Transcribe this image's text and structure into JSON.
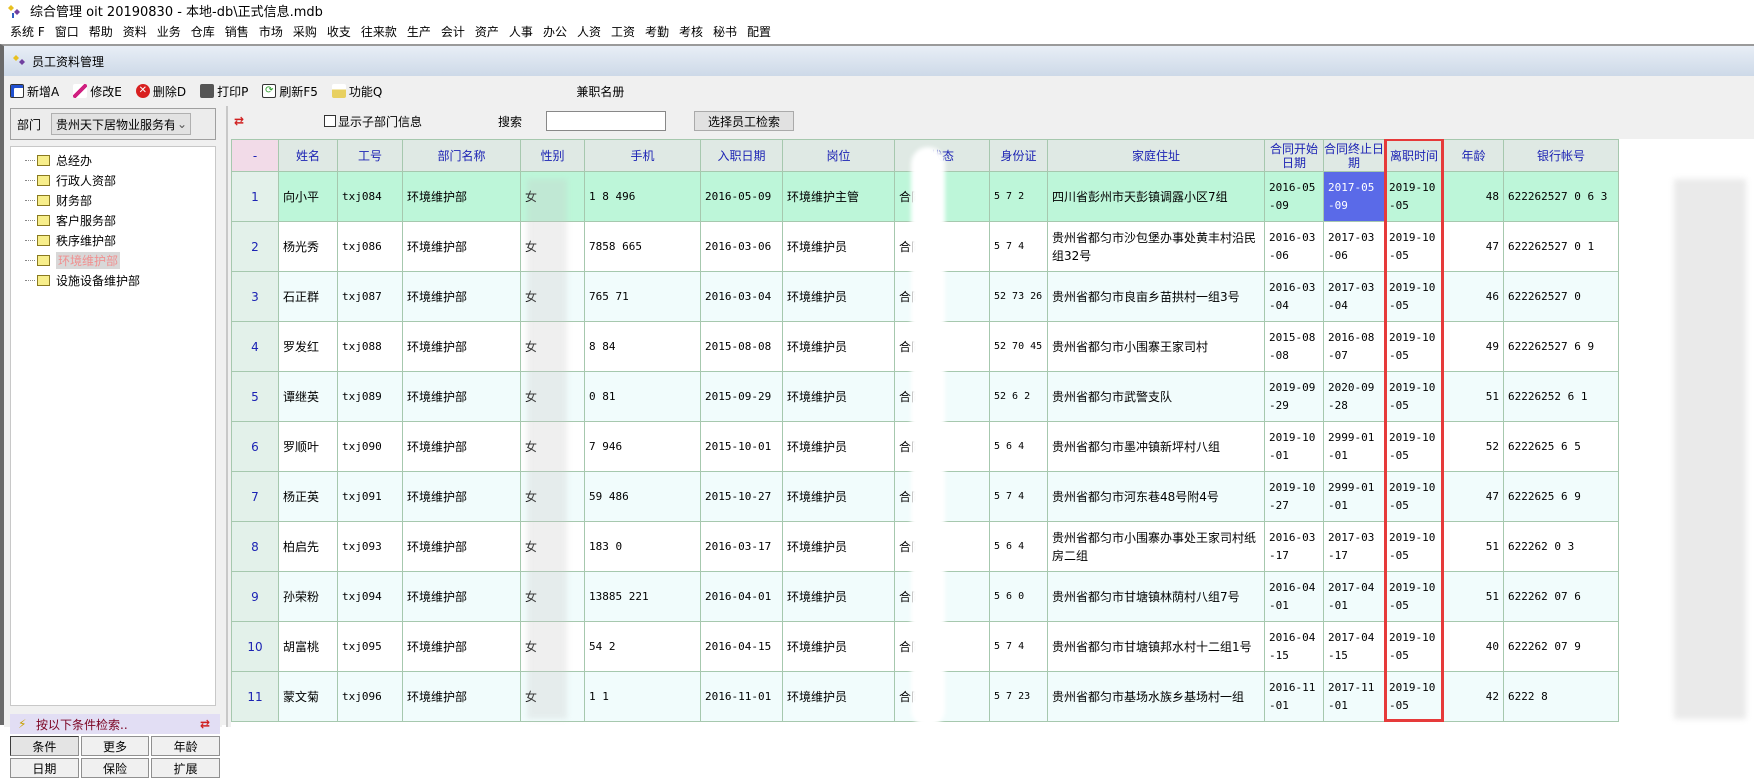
{
  "app": {
    "title": "综合管理 oit 20190830 - 本地-db\\正式信息.mdb"
  },
  "menu": [
    "系统 F",
    "窗口",
    "帮助",
    "资料",
    "业务",
    "仓库",
    "销售",
    "市场",
    "采购",
    "收支",
    "往来款",
    "生产",
    "会计",
    "资产",
    "人事",
    "办公",
    "人资",
    "工资",
    "考勤",
    "考核",
    "秘书",
    "配置"
  ],
  "window": {
    "title": "员工资料管理"
  },
  "toolbar": {
    "add": "新增A",
    "edit": "修改E",
    "delete": "删除D",
    "print": "打印P",
    "refresh": "刷新F5",
    "function": "功能Q",
    "parttime": "兼职名册"
  },
  "left": {
    "dept_label": "部门",
    "dept_value": "贵州天下居物业服务有",
    "tree": [
      "总经办",
      "行政人资部",
      "财务部",
      "客户服务部",
      "秩序维护部",
      "环境维护部",
      "设施设备维护部"
    ],
    "selected_index": 5,
    "cond_title": "按以下条件检索..",
    "buttons_row1": [
      "条件",
      "更多",
      "年龄"
    ],
    "buttons_row2": [
      "日期",
      "保险",
      "扩展"
    ]
  },
  "search": {
    "show_sub": "显示子部门信息",
    "label": "搜索",
    "value": "",
    "button": "选择员工检索"
  },
  "colors": {
    "header_text": "#1c23b4",
    "selected_row": "#bdf6d9",
    "highlight_cell": "#5a6ae8",
    "red_box": "#e63a3a"
  },
  "table": {
    "columns": [
      "-",
      "姓名",
      "工号",
      "部门名称",
      "性别",
      "手机",
      "入职日期",
      "岗位",
      "状态",
      "身份证",
      "家庭住址",
      "合同开始日期",
      "合同终止日期",
      "离职时间",
      "年龄",
      "银行帐号"
    ],
    "rows": [
      [
        "1",
        "向小平",
        "txj084",
        "环境维护部",
        "女",
        "1  8   496",
        "2016-05-09",
        "环境维护主管",
        "合同期",
        "5 7 2",
        "四川省彭州市天彭镇调露小区7组",
        "2016-05-09",
        "2017-05-09",
        "2019-10-05",
        "48",
        "622262527  0  6 3"
      ],
      [
        "2",
        "杨光秀",
        "txj086",
        "环境维护部",
        "女",
        "7858  665",
        "2016-03-06",
        "环境维护员",
        "合同期",
        "5 7 4",
        "贵州省都匀市沙包堡办事处黄丰村沿民组32号",
        "2016-03-06",
        "2017-03-06",
        "2019-10-05",
        "47",
        "622262527  0 1"
      ],
      [
        "3",
        "石正群",
        "txj087",
        "环境维护部",
        "女",
        "765   71",
        "2016-03-04",
        "环境维护员",
        "合同期",
        "52 73 26",
        "贵州省都匀市良亩乡苗拱村一组3号",
        "2016-03-04",
        "2017-03-04",
        "2019-10-05",
        "46",
        "622262527  0"
      ],
      [
        "4",
        "罗发红",
        "txj088",
        "环境维护部",
        "女",
        "8  84",
        "2015-08-08",
        "环境维护员",
        "合同期",
        "52 70 45",
        "贵州省都匀市小围寨王家司村",
        "2015-08-08",
        "2016-08-07",
        "2019-10-05",
        "49",
        "622262527  6 9"
      ],
      [
        "5",
        "谭继英",
        "txj089",
        "环境维护部",
        "女",
        "0  81",
        "2015-09-29",
        "环境维护员",
        "合同期",
        "52 6 2",
        "贵州省都匀市武警支队",
        "2019-09-29",
        "2020-09-28",
        "2019-10-05",
        "51",
        "62226252  6 1"
      ],
      [
        "6",
        "罗顺叶",
        "txj090",
        "环境维护部",
        "女",
        "7  946",
        "2015-10-01",
        "环境维护员",
        "合同期",
        "5 6 4",
        "贵州省都匀市墨冲镇新坪村八组",
        "2019-10-01",
        "2999-01-01",
        "2019-10-05",
        "52",
        "6222625  6 5"
      ],
      [
        "7",
        "杨正英",
        "txj091",
        "环境维护部",
        "女",
        "59  486",
        "2015-10-27",
        "环境维护员",
        "合同期",
        "5 7 4",
        "贵州省都匀市河东巷48号附4号",
        "2019-10-27",
        "2999-01-01",
        "2019-10-05",
        "47",
        "6222625  6 9"
      ],
      [
        "8",
        "柏启先",
        "txj093",
        "环境维护部",
        "女",
        "183  0",
        "2016-03-17",
        "环境维护员",
        "合同期",
        "5 6 4",
        "贵州省都匀市小围寨办事处王家司村纸房二组",
        "2016-03-17",
        "2017-03-17",
        "2019-10-05",
        "51",
        "622262  0 3"
      ],
      [
        "9",
        "孙荣粉",
        "txj094",
        "环境维护部",
        "女",
        "13885  221",
        "2016-04-01",
        "环境维护员",
        "合同期",
        "5 6 0",
        "贵州省都匀市甘塘镇林荫村八组7号",
        "2016-04-01",
        "2017-04-01",
        "2019-10-05",
        "51",
        "622262  07 6"
      ],
      [
        "10",
        "胡富桃",
        "txj095",
        "环境维护部",
        "女",
        "54  2",
        "2016-04-15",
        "环境维护员",
        "合同期",
        "5 7 4",
        "贵州省都匀市甘塘镇邦水村十二组1号",
        "2016-04-15",
        "2017-04-15",
        "2019-10-05",
        "40",
        "622262  07 9"
      ],
      [
        "11",
        "蒙文菊",
        "txj096",
        "环境维护部",
        "女",
        "1  1",
        "2016-11-01",
        "环境维护员",
        "合同期",
        "5 7 23",
        "贵州省都匀市基场水族乡基场村一组",
        "2016-11-01",
        "2017-11-01",
        "2019-10-05",
        "42",
        "6222  8"
      ]
    ]
  }
}
